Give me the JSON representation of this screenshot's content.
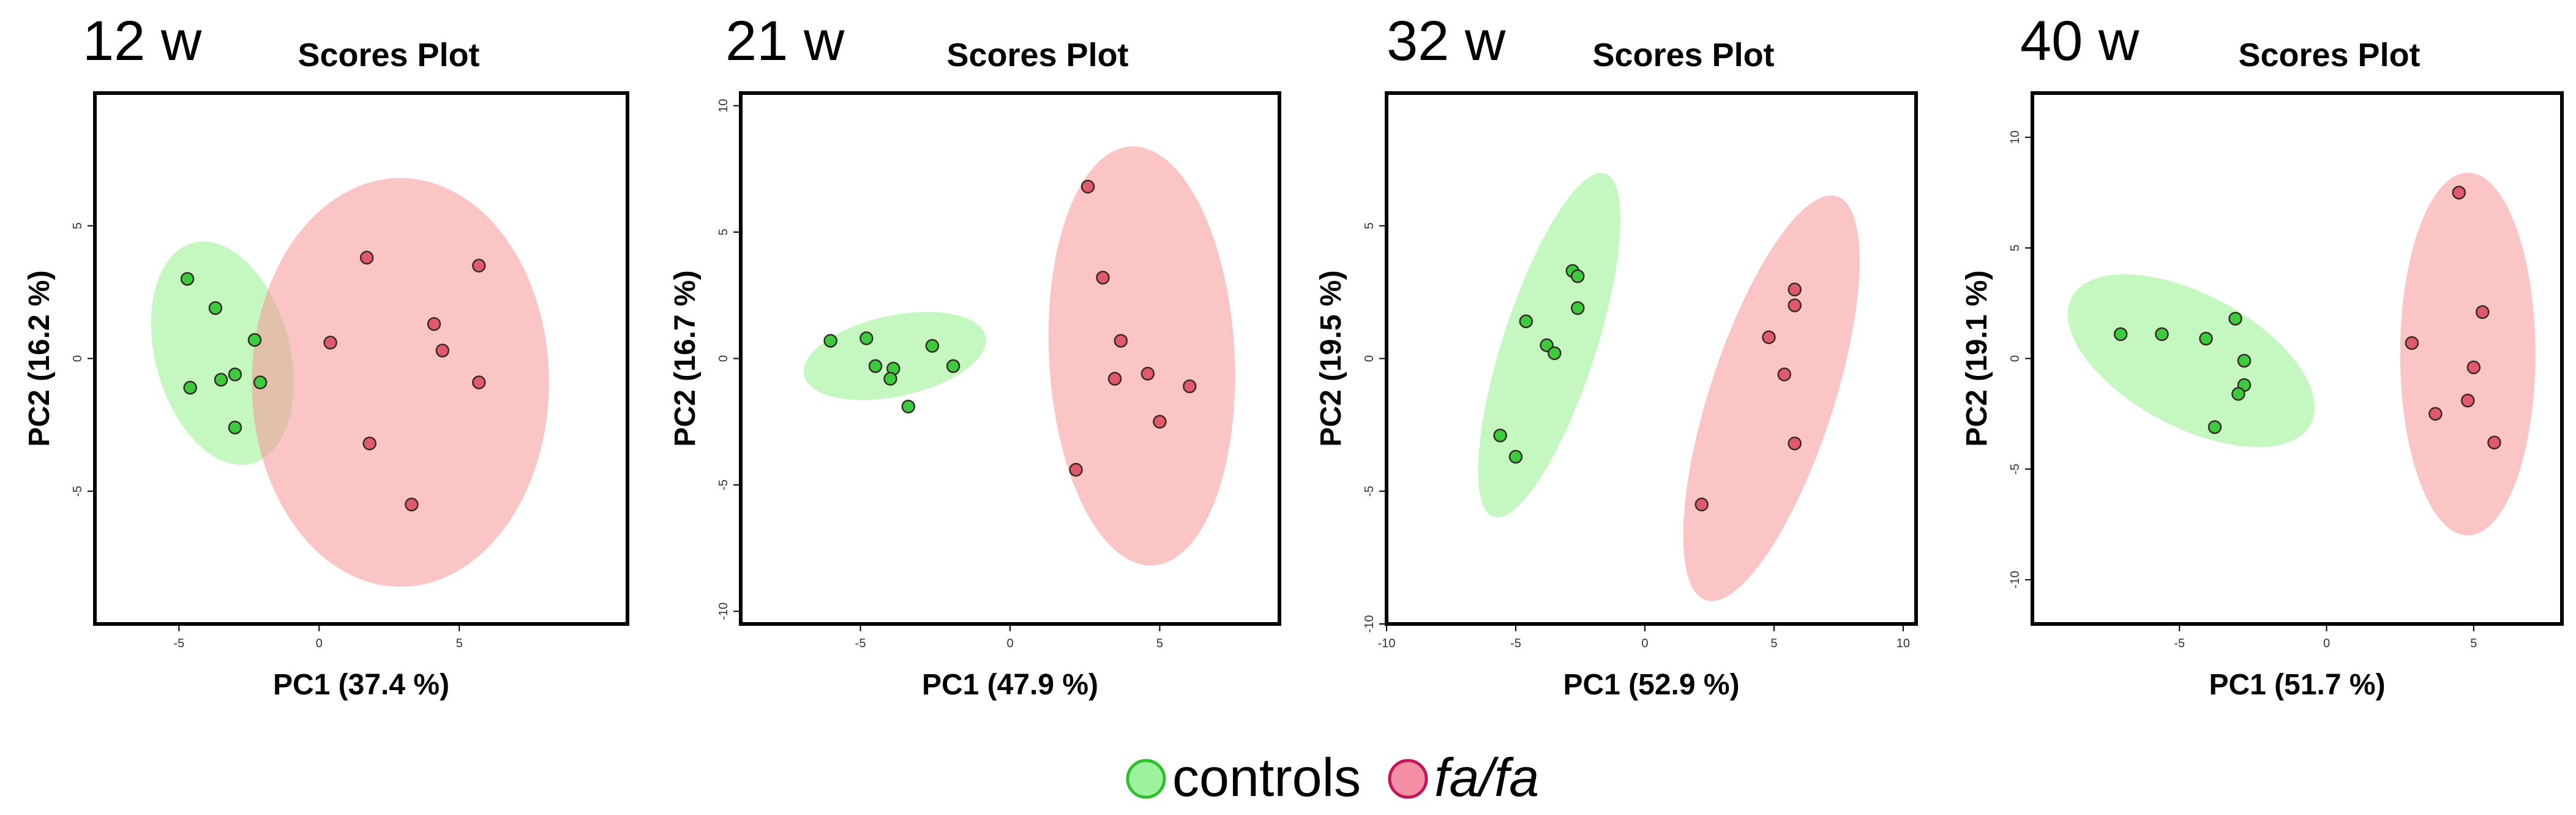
{
  "legend": {
    "controls": {
      "label": "controls",
      "fill": "#9ef29e",
      "stroke": "#2fbf2f"
    },
    "fafa": {
      "label": "fa/fa",
      "fill": "#f48fa6",
      "stroke": "#c2185b"
    }
  },
  "chart_data": [
    {
      "type": "scatter",
      "week_label": "12 w",
      "title": "Scores Plot",
      "xlabel": "PC1 (37.4 %)",
      "ylabel": "PC2 (16.2 %)",
      "xlim": [
        -8,
        11
      ],
      "ylim": [
        -10,
        10
      ],
      "xticks": [
        -5,
        0,
        5
      ],
      "yticks": [
        5,
        0,
        -5
      ],
      "series": [
        {
          "name": "controls",
          "color": "#1db31d",
          "points": [
            [
              -4.7,
              3.0
            ],
            [
              -3.7,
              1.9
            ],
            [
              -2.3,
              0.7
            ],
            [
              -4.6,
              -1.1
            ],
            [
              -3.5,
              -0.8
            ],
            [
              -3.0,
              -0.6
            ],
            [
              -2.1,
              -0.9
            ],
            [
              -3.0,
              -2.6
            ]
          ],
          "ellipse": {
            "cx": -3.45,
            "cy": 0.2,
            "rx": 2.4,
            "ry": 4.3,
            "angle": -15
          }
        },
        {
          "name": "fa/fa",
          "color": "#d81b60",
          "points": [
            [
              1.7,
              3.8
            ],
            [
              5.7,
              3.5
            ],
            [
              4.1,
              1.3
            ],
            [
              0.4,
              0.6
            ],
            [
              4.4,
              0.3
            ],
            [
              5.7,
              -0.9
            ],
            [
              1.8,
              -3.2
            ],
            [
              3.3,
              -5.5
            ]
          ],
          "ellipse": {
            "cx": 2.9,
            "cy": -0.9,
            "rx": 5.3,
            "ry": 7.7,
            "angle": 0
          }
        }
      ]
    },
    {
      "type": "scatter",
      "week_label": "21 w",
      "title": "Scores Plot",
      "xlabel": "PC1 (47.9 %)",
      "ylabel": "PC2 (16.7 %)",
      "xlim": [
        -9,
        9
      ],
      "ylim": [
        -10.5,
        10.5
      ],
      "xticks": [
        -5,
        0,
        5
      ],
      "yticks": [
        10,
        5,
        0,
        -5,
        -10
      ],
      "series": [
        {
          "name": "controls",
          "color": "#1db31d",
          "points": [
            [
              -6.0,
              0.7
            ],
            [
              -4.8,
              0.8
            ],
            [
              -2.6,
              0.5
            ],
            [
              -4.5,
              -0.3
            ],
            [
              -3.9,
              -0.4
            ],
            [
              -1.9,
              -0.3
            ],
            [
              -4.0,
              -0.8
            ],
            [
              -3.4,
              -1.9
            ]
          ],
          "ellipse": {
            "cx": -3.85,
            "cy": 0.1,
            "rx": 3.1,
            "ry": 1.6,
            "angle": -12
          }
        },
        {
          "name": "fa/fa",
          "color": "#d81b60",
          "points": [
            [
              2.6,
              6.8
            ],
            [
              3.1,
              3.2
            ],
            [
              3.7,
              0.7
            ],
            [
              4.6,
              -0.6
            ],
            [
              3.5,
              -0.8
            ],
            [
              6.0,
              -1.1
            ],
            [
              5.0,
              -2.5
            ],
            [
              2.2,
              -4.4
            ]
          ],
          "ellipse": {
            "cx": 4.4,
            "cy": 0.1,
            "rx": 3.1,
            "ry": 8.3,
            "angle": -3
          }
        }
      ]
    },
    {
      "type": "scatter",
      "week_label": "32 w",
      "title": "Scores Plot",
      "xlabel": "PC1 (52.9 %)",
      "ylabel": "PC2 (19.5 %)",
      "xlim": [
        -10,
        10.5
      ],
      "ylim": [
        -10,
        10
      ],
      "xticks": [
        -10,
        -5,
        0,
        5,
        10
      ],
      "yticks": [
        5,
        0,
        -5,
        -10
      ],
      "series": [
        {
          "name": "controls",
          "color": "#1db31d",
          "points": [
            [
              -2.8,
              3.3
            ],
            [
              -2.6,
              3.1
            ],
            [
              -2.6,
              1.9
            ],
            [
              -4.6,
              1.4
            ],
            [
              -3.8,
              0.5
            ],
            [
              -3.5,
              0.2
            ],
            [
              -5.6,
              -2.9
            ],
            [
              -5.0,
              -3.7
            ]
          ],
          "ellipse": {
            "cx": -3.7,
            "cy": 0.5,
            "rx": 1.8,
            "ry": 6.8,
            "angle": 18
          }
        },
        {
          "name": "fa/fa",
          "color": "#d81b60",
          "points": [
            [
              5.8,
              2.6
            ],
            [
              5.8,
              2.0
            ],
            [
              4.8,
              0.8
            ],
            [
              5.4,
              -0.6
            ],
            [
              5.8,
              -3.2
            ],
            [
              2.2,
              -5.5
            ]
          ],
          "ellipse": {
            "cx": 4.9,
            "cy": -1.5,
            "rx": 2.4,
            "ry": 8.0,
            "angle": 18
          }
        }
      ]
    },
    {
      "type": "scatter",
      "week_label": "40 w",
      "title": "Scores Plot",
      "xlabel": "PC1 (51.7 %)",
      "ylabel": "PC2 (19.1 %)",
      "xlim": [
        -10,
        8
      ],
      "ylim": [
        -12,
        12
      ],
      "xticks": [
        -5,
        0,
        5
      ],
      "yticks": [
        10,
        5,
        0,
        -5,
        -10
      ],
      "series": [
        {
          "name": "controls",
          "color": "#1db31d",
          "points": [
            [
              -7.0,
              1.1
            ],
            [
              -5.6,
              1.1
            ],
            [
              -4.1,
              0.9
            ],
            [
              -3.1,
              1.8
            ],
            [
              -2.8,
              -0.1
            ],
            [
              -2.8,
              -1.2
            ],
            [
              -3.0,
              -1.6
            ],
            [
              -3.8,
              -3.1
            ]
          ],
          "ellipse": {
            "cx": -4.6,
            "cy": -0.1,
            "rx": 4.6,
            "ry": 3.0,
            "angle": 28
          }
        },
        {
          "name": "fa/fa",
          "color": "#d81b60",
          "points": [
            [
              4.5,
              7.5
            ],
            [
              5.3,
              2.1
            ],
            [
              2.9,
              0.7
            ],
            [
              5.0,
              -0.4
            ],
            [
              4.8,
              -1.9
            ],
            [
              3.7,
              -2.5
            ],
            [
              5.7,
              -3.8
            ]
          ],
          "ellipse": {
            "cx": 4.8,
            "cy": 0.2,
            "rx": 2.3,
            "ry": 8.2,
            "angle": 0
          }
        }
      ]
    }
  ]
}
